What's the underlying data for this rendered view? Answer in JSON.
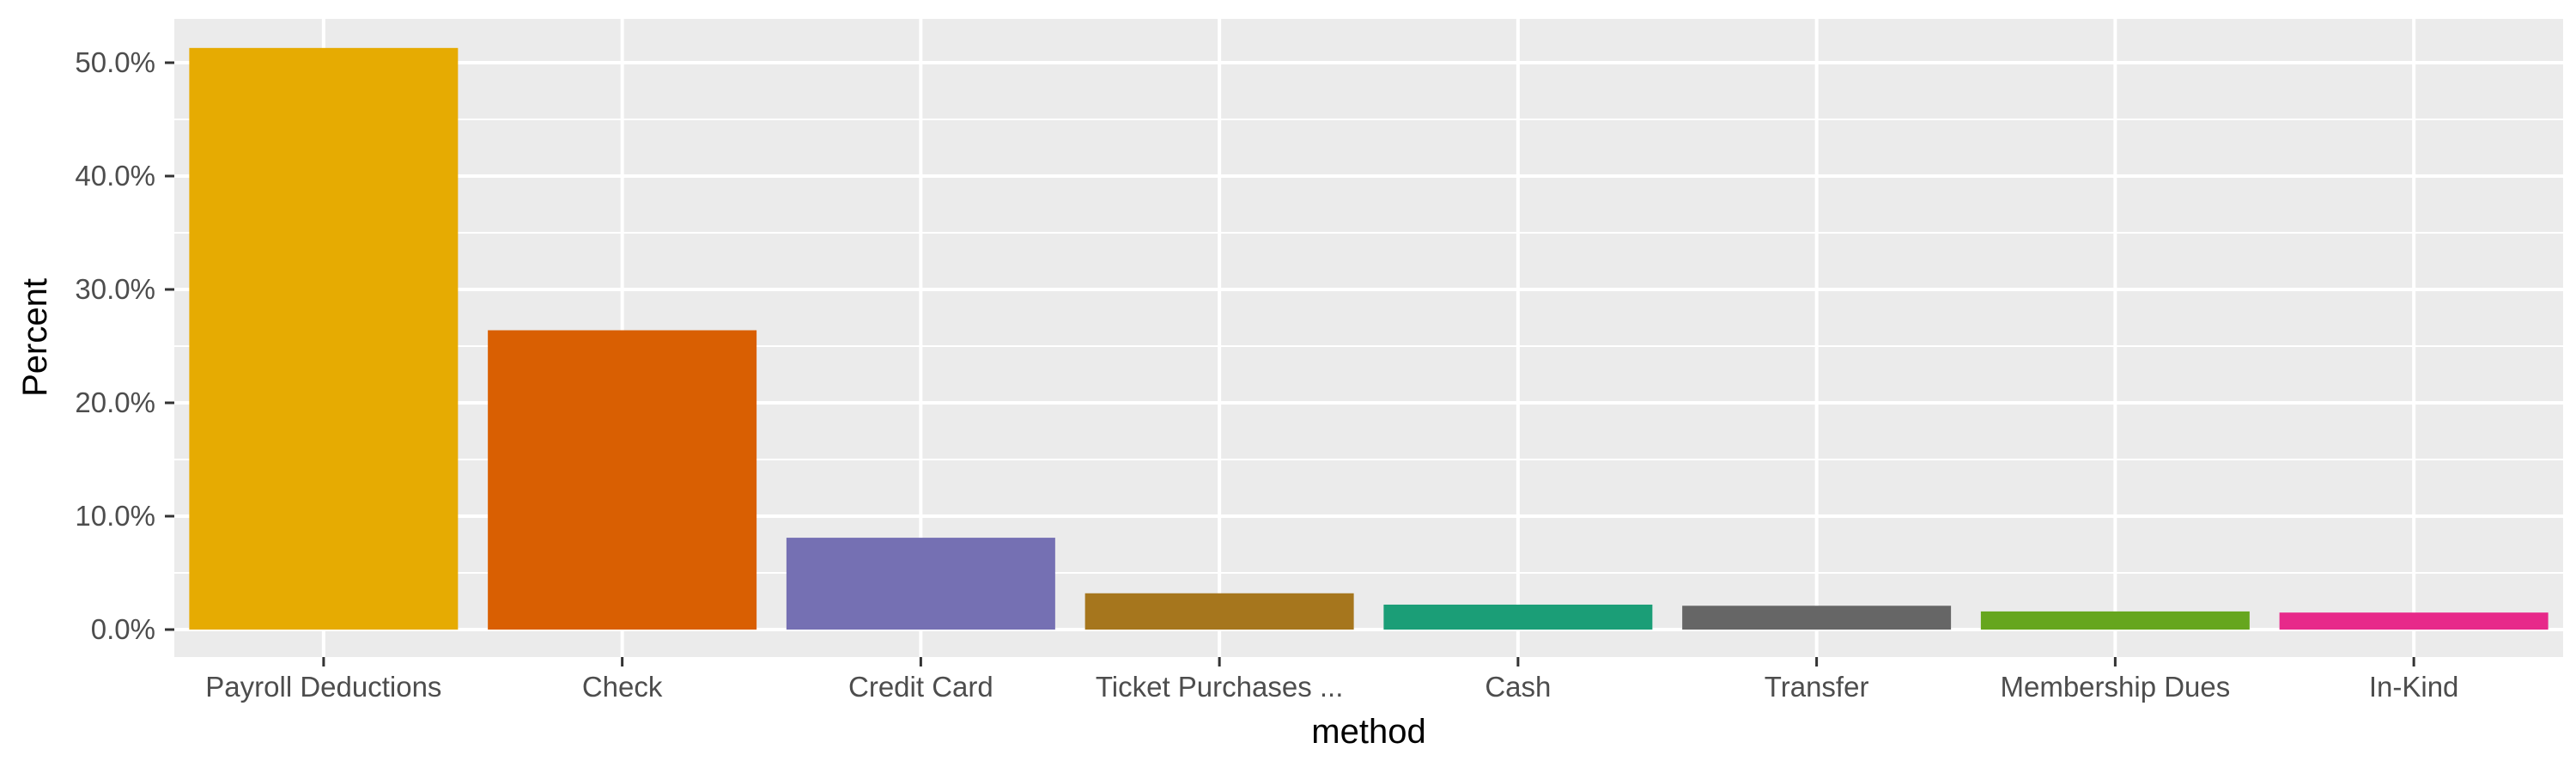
{
  "chart_data": {
    "type": "bar",
    "categories": [
      "Payroll Deductions",
      "Check",
      "Credit Card",
      "Ticket Purchases ...",
      "Cash",
      "Transfer",
      "Membership Dues",
      "In-Kind"
    ],
    "values": [
      51.3,
      26.4,
      8.1,
      3.2,
      2.2,
      2.1,
      1.6,
      1.5
    ],
    "colors": [
      "#E6AB02",
      "#D95F02",
      "#7570B3",
      "#A6761D",
      "#1B9E77",
      "#666666",
      "#66A61E",
      "#E7298A"
    ],
    "xlabel": "method",
    "ylabel": "Percent",
    "ylim": [
      0,
      54
    ],
    "yticks": [
      0,
      10,
      20,
      30,
      40,
      50
    ],
    "ytick_labels": [
      "0.0%",
      "10.0%",
      "20.0%",
      "30.0%",
      "40.0%",
      "50.0%"
    ],
    "grid": true,
    "panel_background": "#EBEBEB",
    "grid_color": "#FFFFFF"
  }
}
